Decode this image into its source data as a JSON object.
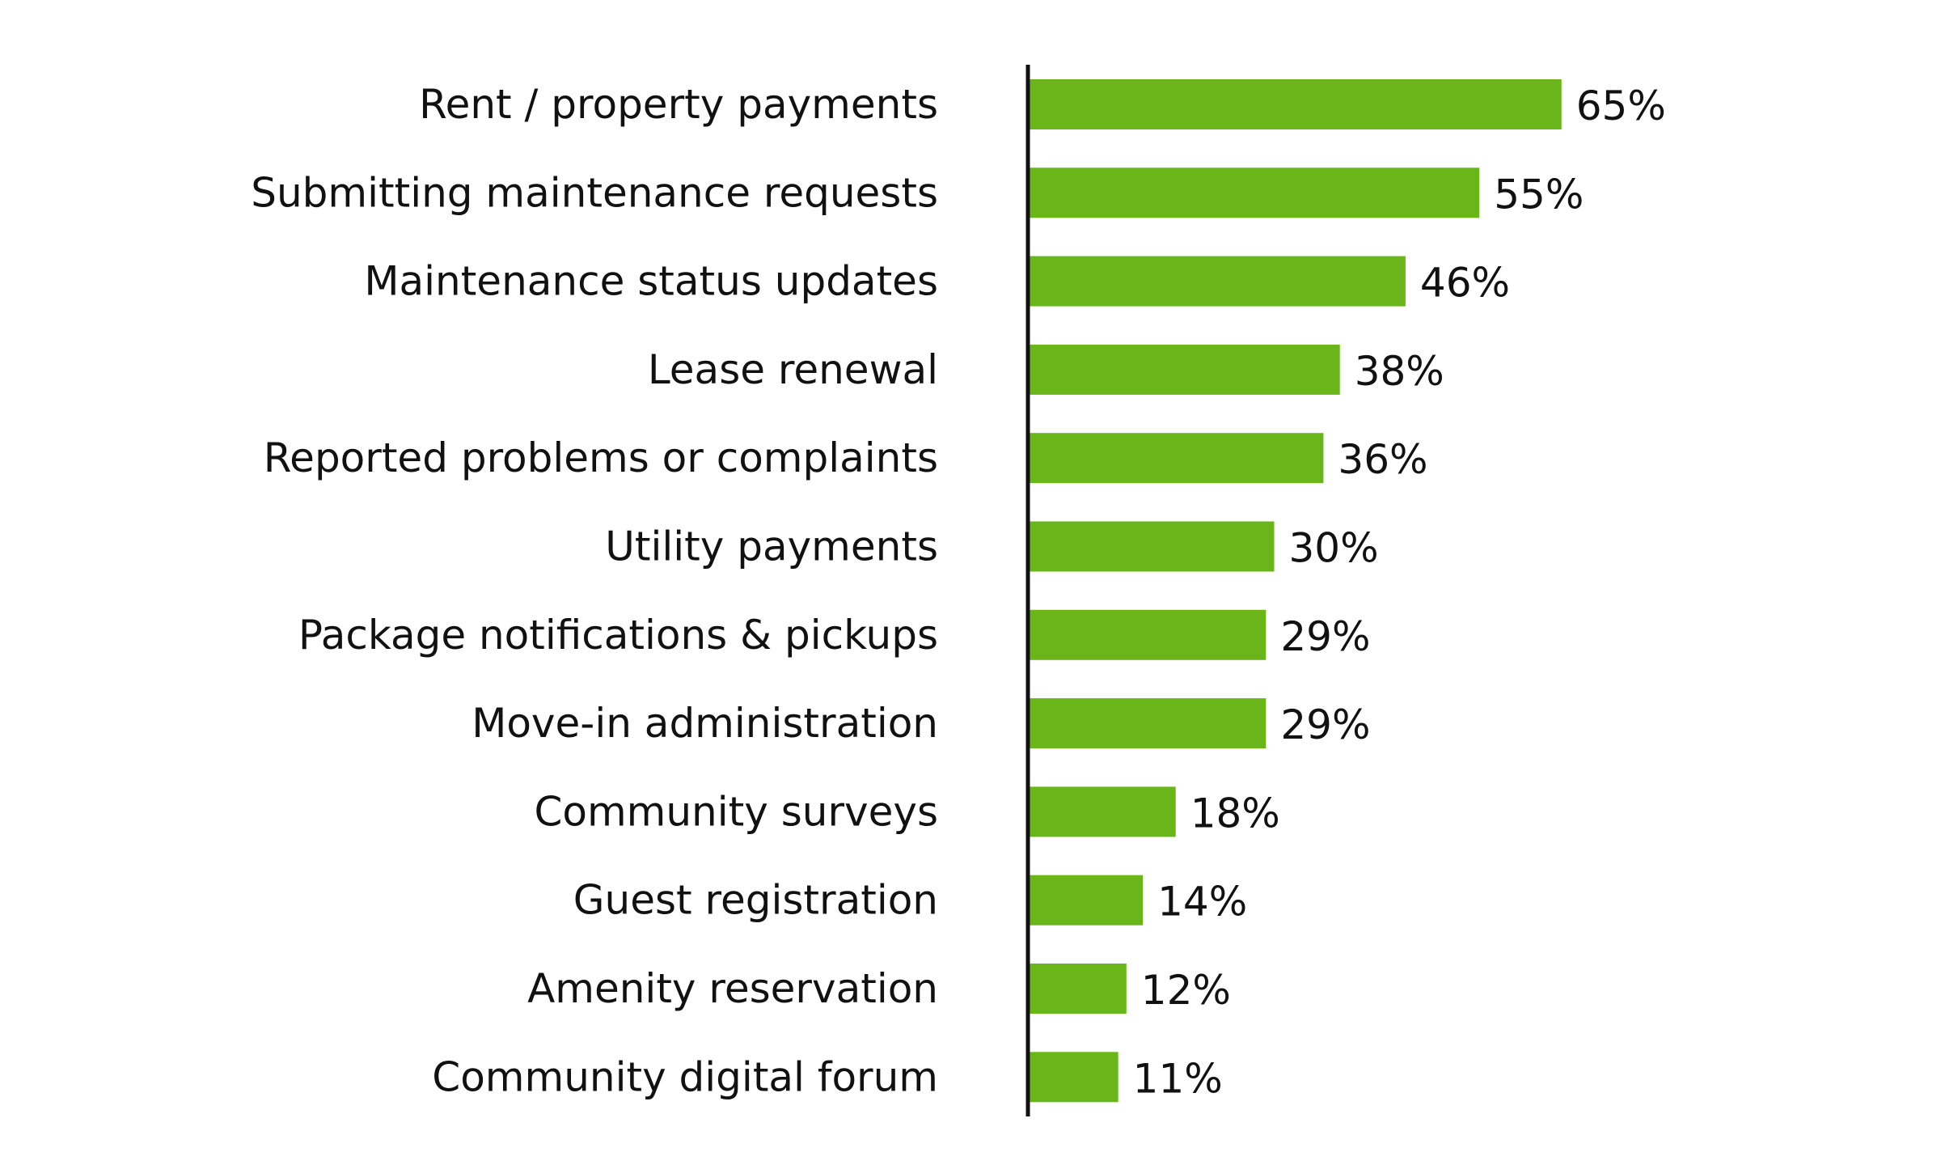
{
  "chart_data": {
    "type": "bar",
    "orientation": "horizontal",
    "categories": [
      "Rent / property payments",
      "Submitting maintenance requests",
      "Maintenance status updates",
      "Lease renewal",
      "Reported problems or complaints",
      "Utility payments",
      "Package notifications & pickups",
      "Move-in administration",
      "Community surveys",
      "Guest registration",
      "Amenity reservation",
      "Community digital forum"
    ],
    "values": [
      65,
      55,
      46,
      38,
      36,
      30,
      29,
      29,
      18,
      14,
      12,
      11
    ],
    "value_labels": [
      "65%",
      "55%",
      "46%",
      "38%",
      "36%",
      "30%",
      "29%",
      "29%",
      "18%",
      "14%",
      "12%",
      "11%"
    ],
    "value_suffix": "%",
    "xlim": [
      0,
      100
    ],
    "grid": false,
    "legend": "none",
    "colors": {
      "bar": "#6ab61a",
      "axis": "#111111",
      "text": "#111111"
    }
  }
}
